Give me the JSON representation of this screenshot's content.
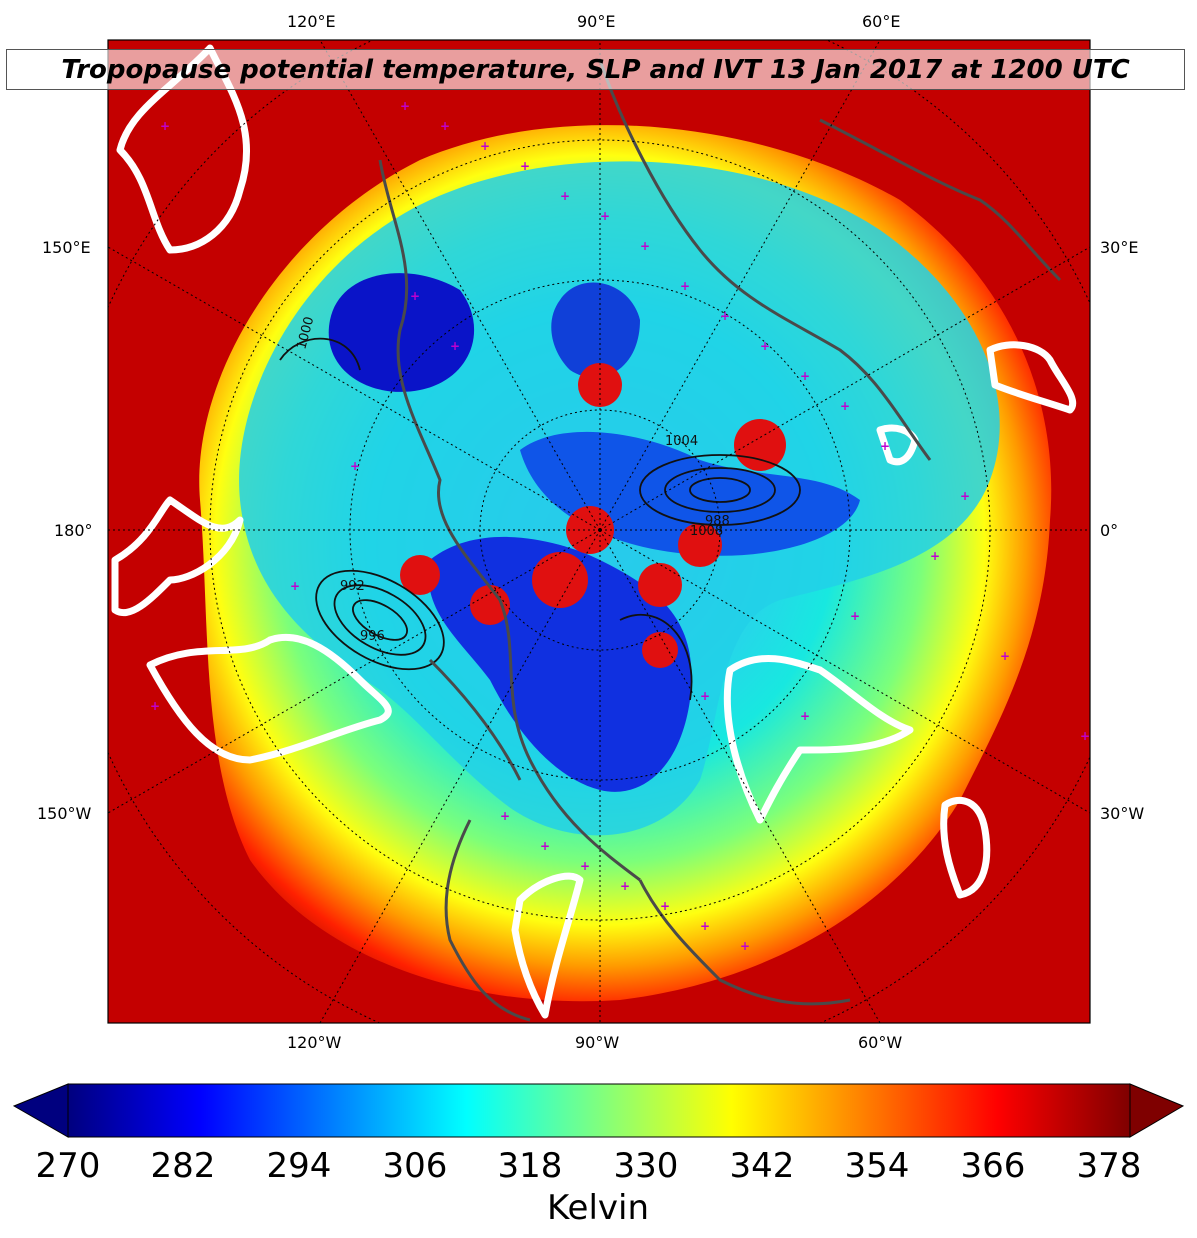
{
  "title": "Tropopause potential temperature, SLP and IVT 13 Jan 2017 at 1200 UTC",
  "map": {
    "projection": "north-polar-stereographic",
    "labels_top": [
      "120°E",
      "90°E",
      "60°E"
    ],
    "labels_bottom": [
      "120°W",
      "90°W",
      "60°W"
    ],
    "labels_left": [
      "150°E",
      "180°",
      "150°W"
    ],
    "labels_right": [
      "30°E",
      "0°",
      "30°W"
    ],
    "slp_contour_labels": [
      "1000",
      "992",
      "996",
      "1004",
      "1008",
      "988"
    ]
  },
  "colorbar": {
    "label": "Kelvin",
    "ticks": [
      "270",
      "282",
      "294",
      "306",
      "318",
      "330",
      "342",
      "354",
      "366",
      "378"
    ],
    "colormap": "jet",
    "extend": "both",
    "colors": [
      "#00007f",
      "#0000ff",
      "#007fff",
      "#00ffff",
      "#7fff7f",
      "#ffff00",
      "#ff7f00",
      "#ff0000",
      "#7f0000"
    ]
  }
}
